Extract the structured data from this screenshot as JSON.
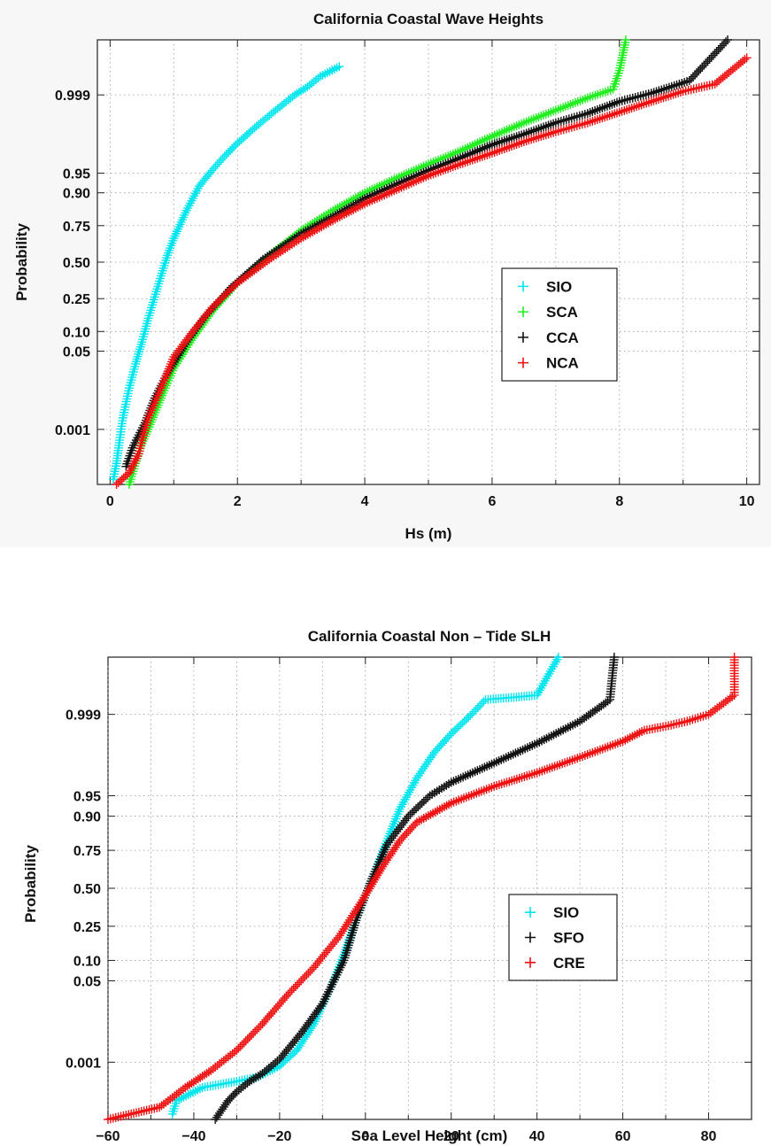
{
  "chart_data": [
    {
      "type": "scatter",
      "title": "California  Coastal  Wave  Heights",
      "xlabel": "Hs  (m)",
      "ylabel": "Probability",
      "xlim": [
        -0.2,
        10.2
      ],
      "x_ticks": [
        0,
        2,
        4,
        6,
        8,
        10
      ],
      "y_scale": "normal-probability",
      "y_ticks": [
        "0.001",
        "0.05",
        "0.10",
        "0.25",
        "0.50",
        "0.75",
        "0.90",
        "0.95",
        "0.999"
      ],
      "y_tick_values": [
        0.001,
        0.05,
        0.1,
        0.25,
        0.5,
        0.75,
        0.9,
        0.95,
        0.999
      ],
      "ylim": [
        2e-05,
        0.99998
      ],
      "grid": true,
      "legend_position": "lower-right",
      "marker": "+",
      "series": [
        {
          "name": "SIO",
          "color": "#00e5ee",
          "points": [
            [
              0.05,
              3e-05
            ],
            [
              0.1,
              0.0001
            ],
            [
              0.15,
              0.0005
            ],
            [
              0.2,
              0.002
            ],
            [
              0.3,
              0.01
            ],
            [
              0.4,
              0.03
            ],
            [
              0.5,
              0.07
            ],
            [
              0.6,
              0.15
            ],
            [
              0.7,
              0.26
            ],
            [
              0.8,
              0.4
            ],
            [
              0.9,
              0.55
            ],
            [
              1.0,
              0.67
            ],
            [
              1.2,
              0.83
            ],
            [
              1.4,
              0.92
            ],
            [
              1.6,
              0.955
            ],
            [
              1.8,
              0.975
            ],
            [
              2.0,
              0.986
            ],
            [
              2.3,
              0.994
            ],
            [
              2.6,
              0.9975
            ],
            [
              2.9,
              0.999
            ],
            [
              3.1,
              0.9994
            ],
            [
              3.3,
              0.9997
            ],
            [
              3.6,
              0.99985
            ]
          ]
        },
        {
          "name": "SCA",
          "color": "#22ee22",
          "points": [
            [
              0.3,
              2e-05
            ],
            [
              0.4,
              0.0001
            ],
            [
              0.5,
              0.0004
            ],
            [
              0.6,
              0.001
            ],
            [
              0.8,
              0.006
            ],
            [
              1.0,
              0.025
            ],
            [
              1.3,
              0.08
            ],
            [
              1.6,
              0.18
            ],
            [
              2.0,
              0.35
            ],
            [
              2.5,
              0.55
            ],
            [
              3.0,
              0.72
            ],
            [
              3.5,
              0.83
            ],
            [
              4.0,
              0.9
            ],
            [
              4.5,
              0.94
            ],
            [
              5.0,
              0.965
            ],
            [
              5.5,
              0.98
            ],
            [
              6.0,
              0.99
            ],
            [
              6.5,
              0.995
            ],
            [
              7.0,
              0.9975
            ],
            [
              7.5,
              0.9988
            ],
            [
              7.9,
              0.9993
            ],
            [
              8.0,
              0.9998
            ],
            [
              8.1,
              0.99998
            ]
          ]
        },
        {
          "name": "CCA",
          "color": "#111111",
          "points": [
            [
              0.25,
              8e-05
            ],
            [
              0.35,
              0.0003
            ],
            [
              0.45,
              0.0007
            ],
            [
              0.55,
              0.0015
            ],
            [
              0.7,
              0.006
            ],
            [
              0.9,
              0.02
            ],
            [
              1.2,
              0.07
            ],
            [
              1.5,
              0.16
            ],
            [
              1.9,
              0.32
            ],
            [
              2.4,
              0.52
            ],
            [
              3.0,
              0.7
            ],
            [
              3.5,
              0.8
            ],
            [
              4.0,
              0.88
            ],
            [
              4.5,
              0.925
            ],
            [
              5.0,
              0.955
            ],
            [
              5.5,
              0.973
            ],
            [
              6.0,
              0.985
            ],
            [
              6.5,
              0.991
            ],
            [
              7.0,
              0.995
            ],
            [
              7.5,
              0.997
            ],
            [
              8.0,
              0.9985
            ],
            [
              8.5,
              0.9991
            ],
            [
              9.1,
              0.9996
            ],
            [
              9.7,
              0.99998
            ]
          ]
        },
        {
          "name": "NCA",
          "color": "#ee1111",
          "points": [
            [
              0.1,
              2e-05
            ],
            [
              0.3,
              5e-05
            ],
            [
              0.45,
              0.0002
            ],
            [
              0.5,
              0.0005
            ],
            [
              0.6,
              0.002
            ],
            [
              0.8,
              0.01
            ],
            [
              1.0,
              0.04
            ],
            [
              1.3,
              0.1
            ],
            [
              1.6,
              0.2
            ],
            [
              2.0,
              0.35
            ],
            [
              2.5,
              0.52
            ],
            [
              3.0,
              0.67
            ],
            [
              3.5,
              0.78
            ],
            [
              4.0,
              0.86
            ],
            [
              4.5,
              0.91
            ],
            [
              5.0,
              0.945
            ],
            [
              5.5,
              0.965
            ],
            [
              6.0,
              0.978
            ],
            [
              6.5,
              0.987
            ],
            [
              7.0,
              0.992
            ],
            [
              7.5,
              0.995
            ],
            [
              8.0,
              0.9972
            ],
            [
              8.5,
              0.9985
            ],
            [
              9.0,
              0.9992
            ],
            [
              9.5,
              0.9995
            ],
            [
              10.0,
              0.99992
            ]
          ]
        }
      ]
    },
    {
      "type": "scatter",
      "title": "California  Coastal  Non – Tide  SLH",
      "xlabel": "Sea  Level  Height  (cm)",
      "ylabel": "Probability",
      "xlim": [
        -60,
        90
      ],
      "x_ticks": [
        -60,
        -40,
        -20,
        0,
        20,
        40,
        60,
        80
      ],
      "y_scale": "normal-probability",
      "y_ticks": [
        "0.001",
        "0.05",
        "0.10",
        "0.25",
        "0.50",
        "0.75",
        "0.90",
        "0.95",
        "0.999"
      ],
      "y_tick_values": [
        0.001,
        0.05,
        0.1,
        0.25,
        0.5,
        0.75,
        0.9,
        0.95,
        0.999
      ],
      "ylim": [
        2e-05,
        0.99998
      ],
      "grid": true,
      "legend_position": "lower-right",
      "marker": "+",
      "series": [
        {
          "name": "SIO",
          "color": "#00e5ee",
          "points": [
            [
              -45,
              3e-05
            ],
            [
              -44,
              8e-05
            ],
            [
              -38,
              0.0002
            ],
            [
              -30,
              0.0003
            ],
            [
              -25,
              0.0004
            ],
            [
              -20,
              0.0008
            ],
            [
              -16,
              0.002
            ],
            [
              -12,
              0.008
            ],
            [
              -8,
              0.04
            ],
            [
              -5,
              0.12
            ],
            [
              -2,
              0.3
            ],
            [
              0,
              0.45
            ],
            [
              2,
              0.6
            ],
            [
              5,
              0.8
            ],
            [
              8,
              0.92
            ],
            [
              12,
              0.975
            ],
            [
              16,
              0.992
            ],
            [
              20,
              0.997
            ],
            [
              24,
              0.9988
            ],
            [
              28,
              0.9996
            ],
            [
              34,
              0.99965
            ],
            [
              40,
              0.9997
            ],
            [
              45,
              0.99998
            ]
          ]
        },
        {
          "name": "SFO",
          "color": "#111111",
          "points": [
            [
              -35,
              2e-05
            ],
            [
              -32,
              8e-05
            ],
            [
              -30,
              0.00015
            ],
            [
              -27,
              0.0003
            ],
            [
              -24,
              0.0005
            ],
            [
              -20,
              0.0012
            ],
            [
              -15,
              0.005
            ],
            [
              -10,
              0.02
            ],
            [
              -5,
              0.1
            ],
            [
              -2,
              0.3
            ],
            [
              0,
              0.45
            ],
            [
              2,
              0.6
            ],
            [
              5,
              0.78
            ],
            [
              10,
              0.9
            ],
            [
              15,
              0.95
            ],
            [
              20,
              0.97
            ],
            [
              30,
              0.987
            ],
            [
              40,
              0.995
            ],
            [
              50,
              0.9985
            ],
            [
              55,
              0.9994
            ],
            [
              57,
              0.9996
            ],
            [
              58,
              0.99998
            ]
          ]
        },
        {
          "name": "CRE",
          "color": "#ee1111",
          "points": [
            [
              -60,
              2e-05
            ],
            [
              -48,
              5e-05
            ],
            [
              -45,
              0.0001
            ],
            [
              -42,
              0.0002
            ],
            [
              -36,
              0.0006
            ],
            [
              -30,
              0.002
            ],
            [
              -24,
              0.008
            ],
            [
              -18,
              0.03
            ],
            [
              -12,
              0.08
            ],
            [
              -6,
              0.2
            ],
            [
              0,
              0.45
            ],
            [
              4,
              0.65
            ],
            [
              8,
              0.8
            ],
            [
              12,
              0.88
            ],
            [
              20,
              0.935
            ],
            [
              30,
              0.965
            ],
            [
              40,
              0.98
            ],
            [
              50,
              0.99
            ],
            [
              60,
              0.9955
            ],
            [
              65,
              0.9975
            ],
            [
              70,
              0.998
            ],
            [
              75,
              0.9985
            ],
            [
              80,
              0.999
            ],
            [
              86,
              0.9997
            ],
            [
              86,
              0.99998
            ]
          ]
        }
      ]
    }
  ]
}
